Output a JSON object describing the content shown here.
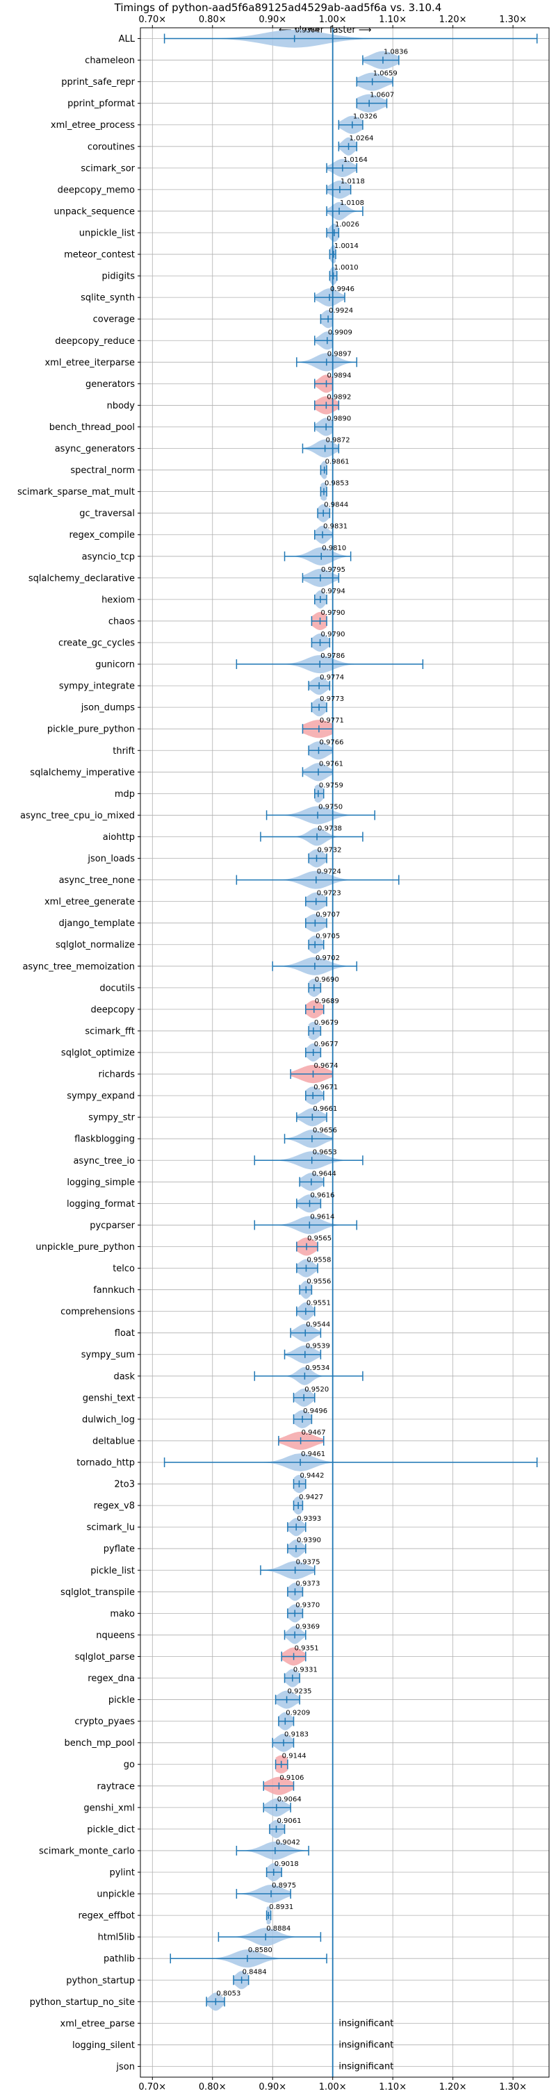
{
  "chart_data": {
    "type": "violin",
    "title": "Timings of python-aad5f6a89125ad4529ab-aad5f6a vs. 3.10.4",
    "direction_labels": {
      "slower": "⟵ slower",
      "faster": "faster ⟶"
    },
    "xlim": [
      0.68,
      1.36
    ],
    "x_ticks": [
      0.7,
      0.8,
      0.9,
      1.0,
      1.1,
      1.2,
      1.3
    ],
    "x_tick_labels": [
      "0.70×",
      "0.80×",
      "0.90×",
      "1.00×",
      "1.10×",
      "1.20×",
      "1.30×"
    ],
    "reference_line": 1.0,
    "insignificant_label": "insignificant",
    "colors": {
      "neutral": "#a8c8e8",
      "highlight": "#f4a6a8",
      "line": "#1f77b4"
    },
    "benchmarks": [
      {
        "name": "ALL",
        "median": 0.9364,
        "label": "0.9364",
        "lo": 0.72,
        "hi": 1.34,
        "spread": 0.05,
        "highlight": false
      },
      {
        "name": "chameleon",
        "median": 1.0836,
        "label": "1.0836",
        "lo": 1.05,
        "hi": 1.11,
        "spread": 0.02,
        "highlight": false
      },
      {
        "name": "pprint_safe_repr",
        "median": 1.0659,
        "label": "1.0659",
        "lo": 1.04,
        "hi": 1.1,
        "spread": 0.02,
        "highlight": false
      },
      {
        "name": "pprint_pformat",
        "median": 1.0607,
        "label": "1.0607",
        "lo": 1.04,
        "hi": 1.09,
        "spread": 0.02,
        "highlight": false
      },
      {
        "name": "xml_etree_process",
        "median": 1.0326,
        "label": "1.0326",
        "lo": 1.01,
        "hi": 1.05,
        "spread": 0.015,
        "highlight": false
      },
      {
        "name": "coroutines",
        "median": 1.0264,
        "label": "1.0264",
        "lo": 1.01,
        "hi": 1.04,
        "spread": 0.01,
        "highlight": false
      },
      {
        "name": "scimark_sor",
        "median": 1.0164,
        "label": "1.0164",
        "lo": 0.99,
        "hi": 1.04,
        "spread": 0.015,
        "highlight": false
      },
      {
        "name": "deepcopy_memo",
        "median": 1.0118,
        "label": "1.0118",
        "lo": 0.99,
        "hi": 1.03,
        "spread": 0.015,
        "highlight": false
      },
      {
        "name": "unpack_sequence",
        "median": 1.0108,
        "label": "1.0108",
        "lo": 0.99,
        "hi": 1.05,
        "spread": 0.012,
        "highlight": false
      },
      {
        "name": "unpickle_list",
        "median": 1.0026,
        "label": "1.0026",
        "lo": 0.99,
        "hi": 1.01,
        "spread": 0.008,
        "highlight": false
      },
      {
        "name": "meteor_contest",
        "median": 1.0014,
        "label": "1.0014",
        "lo": 0.995,
        "hi": 1.005,
        "spread": 0.006,
        "highlight": false
      },
      {
        "name": "pidigits",
        "median": 1.001,
        "label": "1.0010",
        "lo": 0.995,
        "hi": 1.007,
        "spread": 0.006,
        "highlight": false
      },
      {
        "name": "sqlite_synth",
        "median": 0.9946,
        "label": "0.9946",
        "lo": 0.97,
        "hi": 1.02,
        "spread": 0.015,
        "highlight": false
      },
      {
        "name": "coverage",
        "median": 0.9924,
        "label": "0.9924",
        "lo": 0.98,
        "hi": 1.0,
        "spread": 0.01,
        "highlight": false
      },
      {
        "name": "deepcopy_reduce",
        "median": 0.9909,
        "label": "0.9909",
        "lo": 0.97,
        "hi": 1.0,
        "spread": 0.012,
        "highlight": false
      },
      {
        "name": "xml_etree_iterparse",
        "median": 0.9897,
        "label": "0.9897",
        "lo": 0.94,
        "hi": 1.04,
        "spread": 0.018,
        "highlight": false
      },
      {
        "name": "generators",
        "median": 0.9894,
        "label": "0.9894",
        "lo": 0.97,
        "hi": 1.0,
        "spread": 0.012,
        "highlight": true
      },
      {
        "name": "nbody",
        "median": 0.9892,
        "label": "0.9892",
        "lo": 0.97,
        "hi": 1.01,
        "spread": 0.015,
        "highlight": true
      },
      {
        "name": "bench_thread_pool",
        "median": 0.989,
        "label": "0.9890",
        "lo": 0.97,
        "hi": 1.0,
        "spread": 0.012,
        "highlight": false
      },
      {
        "name": "async_generators",
        "median": 0.9872,
        "label": "0.9872",
        "lo": 0.95,
        "hi": 1.01,
        "spread": 0.015,
        "highlight": false
      },
      {
        "name": "spectral_norm",
        "median": 0.9861,
        "label": "0.9861",
        "lo": 0.98,
        "hi": 0.99,
        "spread": 0.006,
        "highlight": false
      },
      {
        "name": "scimark_sparse_mat_mult",
        "median": 0.9853,
        "label": "0.9853",
        "lo": 0.98,
        "hi": 0.99,
        "spread": 0.008,
        "highlight": false
      },
      {
        "name": "gc_traversal",
        "median": 0.9844,
        "label": "0.9844",
        "lo": 0.975,
        "hi": 0.995,
        "spread": 0.009,
        "highlight": false
      },
      {
        "name": "regex_compile",
        "median": 0.9831,
        "label": "0.9831",
        "lo": 0.97,
        "hi": 1.0,
        "spread": 0.01,
        "highlight": false
      },
      {
        "name": "asyncio_tcp",
        "median": 0.981,
        "label": "0.9810",
        "lo": 0.92,
        "hi": 1.03,
        "spread": 0.018,
        "highlight": false
      },
      {
        "name": "sqlalchemy_declarative",
        "median": 0.9795,
        "label": "0.9795",
        "lo": 0.95,
        "hi": 1.01,
        "spread": 0.018,
        "highlight": false
      },
      {
        "name": "hexiom",
        "median": 0.9794,
        "label": "0.9794",
        "lo": 0.97,
        "hi": 0.99,
        "spread": 0.008,
        "highlight": false
      },
      {
        "name": "chaos",
        "median": 0.979,
        "label": "0.9790",
        "lo": 0.965,
        "hi": 0.99,
        "spread": 0.012,
        "highlight": true
      },
      {
        "name": "create_gc_cycles",
        "median": 0.979,
        "label": "0.9790",
        "lo": 0.965,
        "hi": 0.995,
        "spread": 0.012,
        "highlight": false
      },
      {
        "name": "gunicorn",
        "median": 0.9786,
        "label": "0.9786",
        "lo": 0.84,
        "hi": 1.15,
        "spread": 0.022,
        "highlight": false
      },
      {
        "name": "sympy_integrate",
        "median": 0.9774,
        "label": "0.9774",
        "lo": 0.96,
        "hi": 0.995,
        "spread": 0.012,
        "highlight": false
      },
      {
        "name": "json_dumps",
        "median": 0.9773,
        "label": "0.9773",
        "lo": 0.965,
        "hi": 0.99,
        "spread": 0.01,
        "highlight": false
      },
      {
        "name": "pickle_pure_python",
        "median": 0.9771,
        "label": "0.9771",
        "lo": 0.95,
        "hi": 1.0,
        "spread": 0.022,
        "highlight": true
      },
      {
        "name": "thrift",
        "median": 0.9766,
        "label": "0.9766",
        "lo": 0.96,
        "hi": 1.0,
        "spread": 0.015,
        "highlight": false
      },
      {
        "name": "sqlalchemy_imperative",
        "median": 0.9761,
        "label": "0.9761",
        "lo": 0.95,
        "hi": 1.0,
        "spread": 0.015,
        "highlight": false
      },
      {
        "name": "mdp",
        "median": 0.9759,
        "label": "0.9759",
        "lo": 0.97,
        "hi": 0.985,
        "spread": 0.008,
        "highlight": false
      },
      {
        "name": "async_tree_cpu_io_mixed",
        "median": 0.975,
        "label": "0.9750",
        "lo": 0.89,
        "hi": 1.07,
        "spread": 0.022,
        "highlight": false
      },
      {
        "name": "aiohttp",
        "median": 0.9738,
        "label": "0.9738",
        "lo": 0.88,
        "hi": 1.05,
        "spread": 0.014,
        "highlight": false
      },
      {
        "name": "json_loads",
        "median": 0.9732,
        "label": "0.9732",
        "lo": 0.96,
        "hi": 0.99,
        "spread": 0.012,
        "highlight": false
      },
      {
        "name": "async_tree_none",
        "median": 0.9724,
        "label": "0.9724",
        "lo": 0.84,
        "hi": 1.11,
        "spread": 0.022,
        "highlight": false
      },
      {
        "name": "xml_etree_generate",
        "median": 0.9723,
        "label": "0.9723",
        "lo": 0.955,
        "hi": 0.99,
        "spread": 0.014,
        "highlight": false
      },
      {
        "name": "django_template",
        "median": 0.9707,
        "label": "0.9707",
        "lo": 0.955,
        "hi": 0.99,
        "spread": 0.014,
        "highlight": false
      },
      {
        "name": "sqlglot_normalize",
        "median": 0.9705,
        "label": "0.9705",
        "lo": 0.96,
        "hi": 0.985,
        "spread": 0.01,
        "highlight": false
      },
      {
        "name": "async_tree_memoization",
        "median": 0.9702,
        "label": "0.9702",
        "lo": 0.9,
        "hi": 1.04,
        "spread": 0.022,
        "highlight": false
      },
      {
        "name": "docutils",
        "median": 0.969,
        "label": "0.9690",
        "lo": 0.96,
        "hi": 0.98,
        "spread": 0.01,
        "highlight": false
      },
      {
        "name": "deepcopy",
        "median": 0.9689,
        "label": "0.9689",
        "lo": 0.955,
        "hi": 0.985,
        "spread": 0.012,
        "highlight": true
      },
      {
        "name": "scimark_fft",
        "median": 0.9679,
        "label": "0.9679",
        "lo": 0.96,
        "hi": 0.98,
        "spread": 0.01,
        "highlight": false
      },
      {
        "name": "sqlglot_optimize",
        "median": 0.9677,
        "label": "0.9677",
        "lo": 0.955,
        "hi": 0.98,
        "spread": 0.01,
        "highlight": false
      },
      {
        "name": "richards",
        "median": 0.9674,
        "label": "0.9674",
        "lo": 0.93,
        "hi": 1.0,
        "spread": 0.022,
        "highlight": true
      },
      {
        "name": "sympy_expand",
        "median": 0.9671,
        "label": "0.9671",
        "lo": 0.955,
        "hi": 0.985,
        "spread": 0.012,
        "highlight": false
      },
      {
        "name": "sympy_str",
        "median": 0.9661,
        "label": "0.9661",
        "lo": 0.94,
        "hi": 0.99,
        "spread": 0.015,
        "highlight": false
      },
      {
        "name": "flaskblogging",
        "median": 0.9656,
        "label": "0.9656",
        "lo": 0.92,
        "hi": 1.0,
        "spread": 0.018,
        "highlight": false
      },
      {
        "name": "async_tree_io",
        "median": 0.9653,
        "label": "0.9653",
        "lo": 0.87,
        "hi": 1.05,
        "spread": 0.022,
        "highlight": false
      },
      {
        "name": "logging_simple",
        "median": 0.9644,
        "label": "0.9644",
        "lo": 0.945,
        "hi": 0.985,
        "spread": 0.014,
        "highlight": false
      },
      {
        "name": "logging_format",
        "median": 0.9616,
        "label": "0.9616",
        "lo": 0.94,
        "hi": 0.98,
        "spread": 0.014,
        "highlight": false
      },
      {
        "name": "pycparser",
        "median": 0.9614,
        "label": "0.9614",
        "lo": 0.87,
        "hi": 1.04,
        "spread": 0.02,
        "highlight": false
      },
      {
        "name": "unpickle_pure_python",
        "median": 0.9565,
        "label": "0.9565",
        "lo": 0.94,
        "hi": 0.975,
        "spread": 0.014,
        "highlight": true
      },
      {
        "name": "telco",
        "median": 0.9558,
        "label": "0.9558",
        "lo": 0.94,
        "hi": 0.975,
        "spread": 0.012,
        "highlight": false
      },
      {
        "name": "fannkuch",
        "median": 0.9556,
        "label": "0.9556",
        "lo": 0.945,
        "hi": 0.965,
        "spread": 0.008,
        "highlight": false
      },
      {
        "name": "comprehensions",
        "median": 0.9551,
        "label": "0.9551",
        "lo": 0.94,
        "hi": 0.97,
        "spread": 0.01,
        "highlight": false
      },
      {
        "name": "float",
        "median": 0.9544,
        "label": "0.9544",
        "lo": 0.93,
        "hi": 0.98,
        "spread": 0.014,
        "highlight": false
      },
      {
        "name": "sympy_sum",
        "median": 0.9539,
        "label": "0.9539",
        "lo": 0.92,
        "hi": 0.98,
        "spread": 0.016,
        "highlight": false
      },
      {
        "name": "dask",
        "median": 0.9534,
        "label": "0.9534",
        "lo": 0.87,
        "hi": 1.05,
        "spread": 0.012,
        "highlight": false
      },
      {
        "name": "genshi_text",
        "median": 0.952,
        "label": "0.9520",
        "lo": 0.935,
        "hi": 0.97,
        "spread": 0.012,
        "highlight": false
      },
      {
        "name": "dulwich_log",
        "median": 0.9496,
        "label": "0.9496",
        "lo": 0.935,
        "hi": 0.965,
        "spread": 0.012,
        "highlight": false
      },
      {
        "name": "deltablue",
        "median": 0.9467,
        "label": "0.9467",
        "lo": 0.91,
        "hi": 0.985,
        "spread": 0.022,
        "highlight": true
      },
      {
        "name": "tornado_http",
        "median": 0.9461,
        "label": "0.9461",
        "lo": 0.72,
        "hi": 1.34,
        "spread": 0.022,
        "highlight": false
      },
      {
        "name": "2to3",
        "median": 0.9442,
        "label": "0.9442",
        "lo": 0.935,
        "hi": 0.955,
        "spread": 0.01,
        "highlight": false
      },
      {
        "name": "regex_v8",
        "median": 0.9427,
        "label": "0.9427",
        "lo": 0.935,
        "hi": 0.95,
        "spread": 0.008,
        "highlight": false
      },
      {
        "name": "scimark_lu",
        "median": 0.9393,
        "label": "0.9393",
        "lo": 0.925,
        "hi": 0.955,
        "spread": 0.01,
        "highlight": false
      },
      {
        "name": "pyflate",
        "median": 0.939,
        "label": "0.9390",
        "lo": 0.925,
        "hi": 0.955,
        "spread": 0.01,
        "highlight": false
      },
      {
        "name": "pickle_list",
        "median": 0.9375,
        "label": "0.9375",
        "lo": 0.88,
        "hi": 0.97,
        "spread": 0.02,
        "highlight": false
      },
      {
        "name": "sqlglot_transpile",
        "median": 0.9373,
        "label": "0.9373",
        "lo": 0.925,
        "hi": 0.95,
        "spread": 0.01,
        "highlight": false
      },
      {
        "name": "mako",
        "median": 0.937,
        "label": "0.9370",
        "lo": 0.925,
        "hi": 0.95,
        "spread": 0.01,
        "highlight": false
      },
      {
        "name": "nqueens",
        "median": 0.9369,
        "label": "0.9369",
        "lo": 0.92,
        "hi": 0.955,
        "spread": 0.01,
        "highlight": false
      },
      {
        "name": "sqlglot_parse",
        "median": 0.9351,
        "label": "0.9351",
        "lo": 0.915,
        "hi": 0.955,
        "spread": 0.014,
        "highlight": true
      },
      {
        "name": "regex_dna",
        "median": 0.9331,
        "label": "0.9331",
        "lo": 0.92,
        "hi": 0.945,
        "spread": 0.01,
        "highlight": false
      },
      {
        "name": "pickle",
        "median": 0.9235,
        "label": "0.9235",
        "lo": 0.905,
        "hi": 0.945,
        "spread": 0.014,
        "highlight": false
      },
      {
        "name": "crypto_pyaes",
        "median": 0.9209,
        "label": "0.9209",
        "lo": 0.91,
        "hi": 0.935,
        "spread": 0.01,
        "highlight": false
      },
      {
        "name": "bench_mp_pool",
        "median": 0.9183,
        "label": "0.9183",
        "lo": 0.9,
        "hi": 0.935,
        "spread": 0.012,
        "highlight": false
      },
      {
        "name": "go",
        "median": 0.9144,
        "label": "0.9144",
        "lo": 0.905,
        "hi": 0.925,
        "spread": 0.012,
        "highlight": true
      },
      {
        "name": "raytrace",
        "median": 0.9106,
        "label": "0.9106",
        "lo": 0.885,
        "hi": 0.935,
        "spread": 0.018,
        "highlight": true
      },
      {
        "name": "genshi_xml",
        "median": 0.9064,
        "label": "0.9064",
        "lo": 0.885,
        "hi": 0.93,
        "spread": 0.014,
        "highlight": false
      },
      {
        "name": "pickle_dict",
        "median": 0.9061,
        "label": "0.9061",
        "lo": 0.895,
        "hi": 0.92,
        "spread": 0.01,
        "highlight": false
      },
      {
        "name": "scimark_monte_carlo",
        "median": 0.9042,
        "label": "0.9042",
        "lo": 0.84,
        "hi": 0.96,
        "spread": 0.02,
        "highlight": false
      },
      {
        "name": "pylint",
        "median": 0.9018,
        "label": "0.9018",
        "lo": 0.89,
        "hi": 0.915,
        "spread": 0.01,
        "highlight": false
      },
      {
        "name": "unpickle",
        "median": 0.8975,
        "label": "0.8975",
        "lo": 0.84,
        "hi": 0.93,
        "spread": 0.02,
        "highlight": false
      },
      {
        "name": "regex_effbot",
        "median": 0.8931,
        "label": "0.8931",
        "lo": 0.89,
        "hi": 0.897,
        "spread": 0.006,
        "highlight": false
      },
      {
        "name": "html5lib",
        "median": 0.8884,
        "label": "0.8884",
        "lo": 0.81,
        "hi": 0.98,
        "spread": 0.02,
        "highlight": false
      },
      {
        "name": "pathlib",
        "median": 0.858,
        "label": "0.8580",
        "lo": 0.73,
        "hi": 0.99,
        "spread": 0.022,
        "highlight": false
      },
      {
        "name": "python_startup",
        "median": 0.8484,
        "label": "0.8484",
        "lo": 0.835,
        "hi": 0.86,
        "spread": 0.01,
        "highlight": false
      },
      {
        "name": "python_startup_no_site",
        "median": 0.8053,
        "label": "0.8053",
        "lo": 0.79,
        "hi": 0.82,
        "spread": 0.01,
        "highlight": false
      },
      {
        "name": "xml_etree_parse",
        "insignificant": true
      },
      {
        "name": "logging_silent",
        "insignificant": true
      },
      {
        "name": "json",
        "insignificant": true
      }
    ]
  }
}
